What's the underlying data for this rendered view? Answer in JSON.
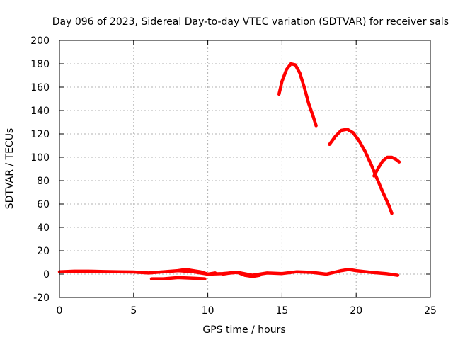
{
  "chart_data": {
    "type": "line",
    "title": "Day 096 of 2023, Sidereal Day-to-day VTEC variation (SDTVAR) for receiver sals",
    "xlabel": "GPS time / hours",
    "ylabel": "SDTVAR / TECUs",
    "xlim": [
      0,
      25
    ],
    "ylim": [
      -20,
      200
    ],
    "xticks": [
      0,
      5,
      10,
      15,
      20,
      25
    ],
    "yticks": [
      -20,
      0,
      20,
      40,
      60,
      80,
      100,
      120,
      140,
      160,
      180,
      200
    ],
    "grid": true,
    "legend": "none",
    "color": "#ff0000",
    "series": [
      {
        "x": [
          0.0,
          1.0,
          2.0,
          3.0,
          4.0,
          5.0,
          6.0,
          7.0,
          8.0,
          9.0,
          10.0,
          11.0,
          12.0,
          13.0,
          14.0,
          15.0,
          16.0,
          17.0,
          18.0,
          19.0,
          19.5,
          20.0,
          21.0,
          22.0,
          22.8
        ],
        "y": [
          2,
          2.5,
          2.5,
          2.2,
          2,
          1.8,
          1,
          2,
          3,
          2,
          0,
          0.5,
          1.5,
          -1,
          1,
          0.5,
          2,
          1.5,
          0,
          3,
          4,
          3,
          1.5,
          0.5,
          -1
        ]
      },
      {
        "x": [
          6.2,
          7.0,
          8.0,
          9.0,
          9.8
        ],
        "y": [
          -4,
          -4,
          -3,
          -3.5,
          -4
        ]
      },
      {
        "x": [
          8.0,
          8.5,
          9.0,
          9.5,
          10.0,
          10.5
        ],
        "y": [
          3,
          4,
          3,
          2,
          0,
          1
        ]
      },
      {
        "x": [
          11.0,
          11.5,
          12.0,
          12.5,
          13.0,
          13.5
        ],
        "y": [
          0,
          1,
          1.5,
          -1,
          -2,
          -1
        ]
      },
      {
        "x": [
          14.8,
          15.0,
          15.3,
          15.6,
          15.9,
          16.2,
          16.5,
          16.8,
          17.1,
          17.3
        ],
        "y": [
          154,
          165,
          175,
          180,
          179,
          172,
          160,
          146,
          135,
          127
        ]
      },
      {
        "x": [
          18.2,
          18.6,
          19.0,
          19.4,
          19.8,
          20.2,
          20.6,
          21.0,
          21.4,
          21.8,
          22.2,
          22.4
        ],
        "y": [
          111,
          118,
          123,
          124,
          121,
          114,
          105,
          94,
          82,
          70,
          59,
          52
        ]
      },
      {
        "x": [
          21.2,
          21.5,
          21.8,
          22.1,
          22.4,
          22.7,
          22.9
        ],
        "y": [
          84,
          91,
          97,
          100,
          100,
          98,
          96
        ]
      }
    ]
  }
}
